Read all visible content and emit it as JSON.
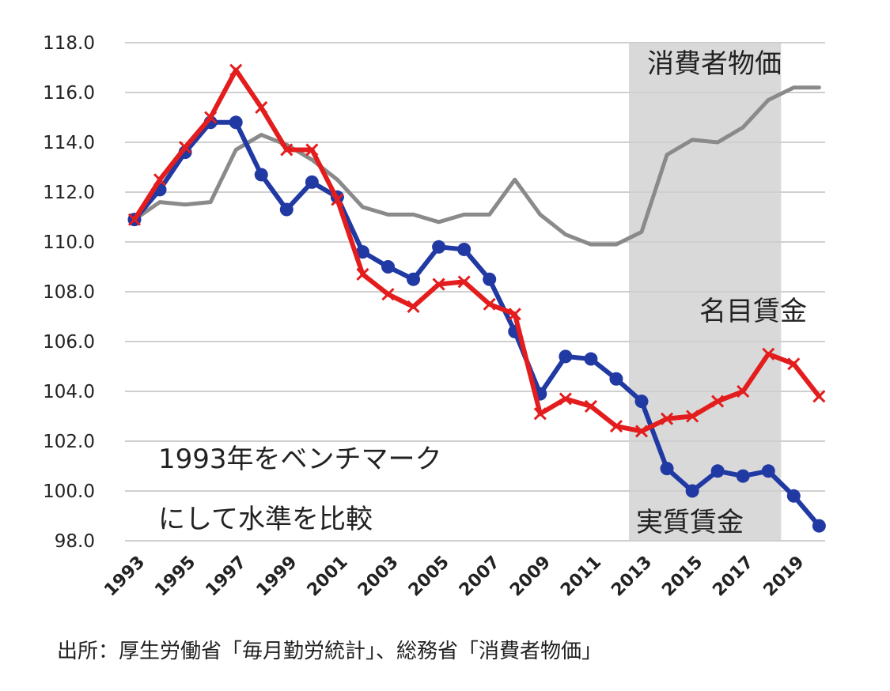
{
  "chart_data": {
    "type": "line",
    "x": [
      1993,
      1994,
      1995,
      1996,
      1997,
      1998,
      1999,
      2000,
      2001,
      2002,
      2003,
      2004,
      2005,
      2006,
      2007,
      2008,
      2009,
      2010,
      2011,
      2012,
      2013,
      2014,
      2015,
      2016,
      2017,
      2018,
      2019,
      2020
    ],
    "x_tick_labels": [
      "1993",
      "1995",
      "1997",
      "1999",
      "2001",
      "2003",
      "2005",
      "2007",
      "2009",
      "2011",
      "2013",
      "2015",
      "2017",
      "2019"
    ],
    "x_ticks": [
      1993,
      1995,
      1997,
      1999,
      2001,
      2003,
      2005,
      2007,
      2009,
      2011,
      2013,
      2015,
      2017,
      2019
    ],
    "ylim": [
      98.0,
      118.0
    ],
    "y_ticks": [
      "98.0",
      "100.0",
      "102.0",
      "104.0",
      "106.0",
      "108.0",
      "110.0",
      "112.0",
      "114.0",
      "116.0",
      "118.0"
    ],
    "grid": true,
    "shaded_region": [
      2012.5,
      2018.5
    ],
    "series": [
      {
        "name": "消費者物価",
        "color": "#8a8a8a",
        "marker": "none",
        "values": [
          110.9,
          111.6,
          111.5,
          111.6,
          113.7,
          114.3,
          113.9,
          113.3,
          112.5,
          111.4,
          111.1,
          111.1,
          110.8,
          111.1,
          111.1,
          112.5,
          111.1,
          110.3,
          109.9,
          109.9,
          110.4,
          113.5,
          114.1,
          114.0,
          114.6,
          115.7,
          116.2,
          116.2
        ]
      },
      {
        "name": "名目賃金",
        "color": "#e31d1d",
        "marker": "x",
        "values": [
          110.9,
          112.5,
          113.8,
          115.0,
          116.9,
          115.4,
          113.7,
          113.7,
          111.7,
          108.7,
          107.9,
          107.4,
          108.3,
          108.4,
          107.5,
          107.1,
          103.1,
          103.7,
          103.4,
          102.6,
          102.4,
          102.9,
          103.0,
          103.6,
          104.0,
          105.5,
          105.1,
          103.8
        ]
      },
      {
        "name": "実質賃金",
        "color": "#2039a3",
        "marker": "circle",
        "values": [
          110.9,
          112.1,
          113.6,
          114.8,
          114.8,
          112.7,
          111.3,
          112.4,
          111.8,
          109.6,
          109.0,
          108.5,
          109.8,
          109.7,
          108.5,
          106.4,
          103.9,
          105.4,
          105.3,
          104.5,
          103.6,
          100.9,
          100.0,
          100.8,
          100.6,
          100.8,
          99.8,
          98.6
        ]
      }
    ]
  },
  "annotations": {
    "cpi_label": "消費者物価",
    "nominal_label": "名目賃金",
    "real_label": "実質賃金",
    "benchmark_line1": "1993年をベンチマーク",
    "benchmark_line2": "にして水準を比較"
  },
  "source": "出所：厚生労働省「毎月勤労統計」、総務省「消費者物価」"
}
